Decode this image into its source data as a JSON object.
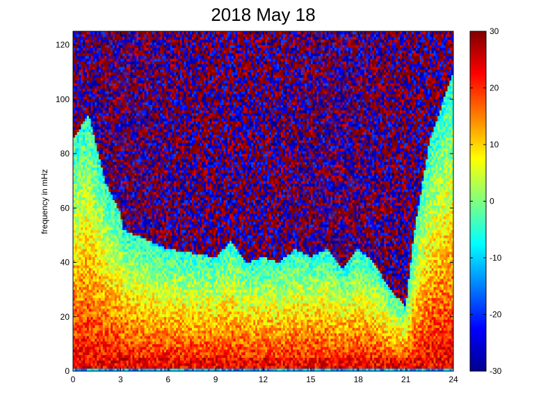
{
  "chart_data": {
    "type": "heatmap",
    "title": "2018 May 18",
    "xlabel": "",
    "ylabel": "frequency in mHz",
    "x_range": [
      0,
      24
    ],
    "y_range": [
      0,
      125
    ],
    "x_ticks": [
      "0",
      "3",
      "6",
      "9",
      "12",
      "15",
      "18",
      "21",
      "24"
    ],
    "y_ticks": [
      "0",
      "20",
      "40",
      "60",
      "80",
      "100",
      "120"
    ],
    "colormap": "jet",
    "color_range": [
      -30,
      30
    ],
    "colorbar_ticks": [
      "30",
      "20",
      "10",
      "0",
      "-10",
      "-20",
      "-30"
    ],
    "boundary_hours": [
      0,
      1,
      2,
      3,
      3.2,
      6,
      9,
      10,
      11,
      12,
      13,
      14,
      15,
      16,
      17,
      18,
      19,
      20,
      21,
      21.5,
      22.5,
      24
    ],
    "boundary_mhz": [
      85,
      95,
      70,
      58,
      52,
      45,
      42,
      48,
      40,
      42,
      40,
      45,
      42,
      45,
      38,
      45,
      40,
      30,
      24,
      50,
      85,
      110
    ]
  }
}
